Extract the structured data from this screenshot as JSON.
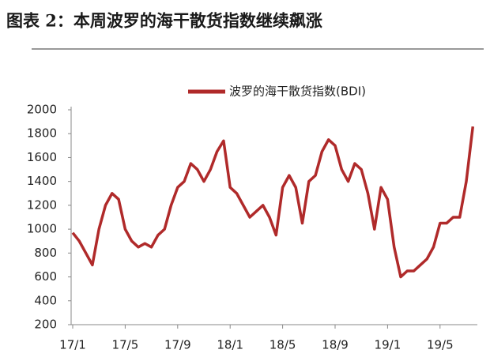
{
  "chart_data": {
    "type": "line",
    "title": "图表 2：本周波罗的海干散货指数继续飙涨",
    "categories": [
      "17/1",
      null,
      null,
      null,
      null,
      null,
      null,
      null,
      "17/5",
      null,
      null,
      null,
      null,
      null,
      null,
      null,
      "17/9",
      null,
      null,
      null,
      null,
      null,
      null,
      null,
      "18/1",
      null,
      null,
      null,
      null,
      null,
      null,
      null,
      "18/5",
      null,
      null,
      null,
      null,
      null,
      null,
      null,
      "18/9",
      null,
      null,
      null,
      null,
      null,
      null,
      null,
      "19/1",
      null,
      null,
      null,
      null,
      null,
      null,
      null,
      "19/5",
      null,
      null,
      null,
      null,
      null
    ],
    "series": [
      {
        "name": "波罗的海干散货指数(BDI)",
        "color": "#b02a2a",
        "values": [
          970,
          900,
          800,
          700,
          1000,
          1200,
          1300,
          1250,
          1000,
          900,
          850,
          880,
          850,
          950,
          1000,
          1200,
          1350,
          1400,
          1550,
          1500,
          1400,
          1500,
          1650,
          1740,
          1350,
          1300,
          1200,
          1100,
          1150,
          1200,
          1100,
          950,
          1350,
          1450,
          1350,
          1050,
          1400,
          1450,
          1650,
          1750,
          1700,
          1500,
          1400,
          1550,
          1500,
          1300,
          1000,
          1350,
          1250,
          850,
          600,
          650,
          650,
          700,
          750,
          850,
          1050,
          1050,
          1100,
          1100,
          1400,
          1860
        ]
      }
    ],
    "ylim": [
      200,
      2000
    ],
    "yticks": [
      200,
      400,
      600,
      800,
      1000,
      1200,
      1400,
      1600,
      1800,
      2000
    ],
    "legend": "top"
  }
}
